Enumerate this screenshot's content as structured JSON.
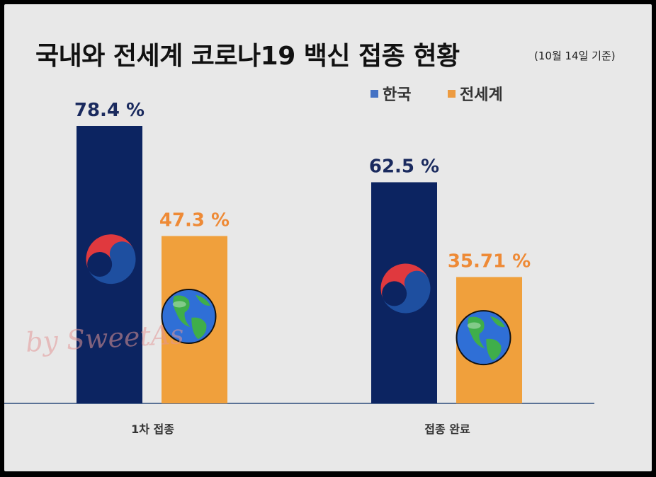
{
  "header": {
    "title": "국내와 전세계 코로나19 백신 접종 현황",
    "subtitle": "(10월 14일 기준)"
  },
  "watermark": "by SweetAs",
  "colors": {
    "korea": "#0c2461",
    "world": "#f0a03c",
    "korea_label": "#1a2a5e",
    "world_label": "#ee8a36",
    "axis": "#2b4a7a",
    "legend_korea": "#4472c4",
    "legend_world": "#ed9b40"
  },
  "legend": {
    "korea": "한국",
    "world": "전세계"
  },
  "chart_data": {
    "type": "bar",
    "title": "국내와 전세계 코로나19 백신 접종 현황",
    "subtitle": "(10월 14일 기준)",
    "categories": [
      "1차 접종",
      "접종 완료"
    ],
    "series": [
      {
        "name": "한국",
        "values": [
          78.4,
          62.5
        ],
        "labels": [
          "78.4 %",
          "62.5 %"
        ],
        "icon": "korea-taegeuk-icon"
      },
      {
        "name": "전세계",
        "values": [
          47.3,
          35.71
        ],
        "labels": [
          "47.3 %",
          "35.71 %"
        ],
        "icon": "earth-globe-icon"
      }
    ],
    "ylim": [
      0,
      100
    ],
    "grid": false,
    "legend_position": "top-right"
  }
}
